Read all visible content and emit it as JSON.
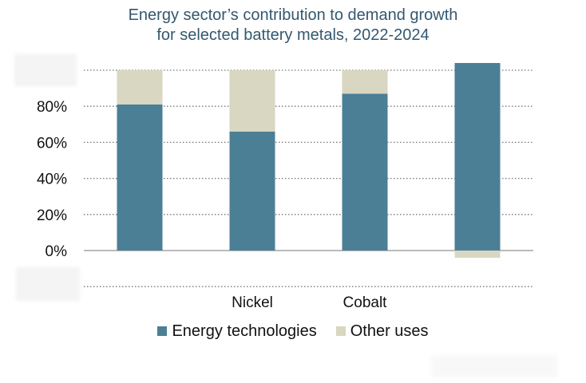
{
  "title_line1": "Energy sector’s contribution to demand growth",
  "title_line2": "for selected battery metals, 2022-2024",
  "colors": {
    "energy": "#4b7f96",
    "other": "#d9d6c2",
    "grid": "#777777",
    "title": "#33586f"
  },
  "chart_data": {
    "type": "bar",
    "stacked": true,
    "title": "Energy sector’s contribution to demand growth for selected battery metals, 2022-2024",
    "categories": [
      "",
      "Nickel",
      "Cobalt",
      ""
    ],
    "ylim": [
      -20,
      100
    ],
    "yticks": [
      -20,
      0,
      20,
      40,
      60,
      80,
      100
    ],
    "ytick_labels": [
      "",
      "0%",
      "20%",
      "40%",
      "60%",
      "80%",
      ""
    ],
    "grid": true,
    "legend_position": "bottom",
    "series": [
      {
        "name": "Energy technologies",
        "values": [
          81,
          66,
          87,
          104
        ]
      },
      {
        "name": "Other uses",
        "values": [
          19,
          34,
          13,
          -4
        ]
      }
    ]
  }
}
